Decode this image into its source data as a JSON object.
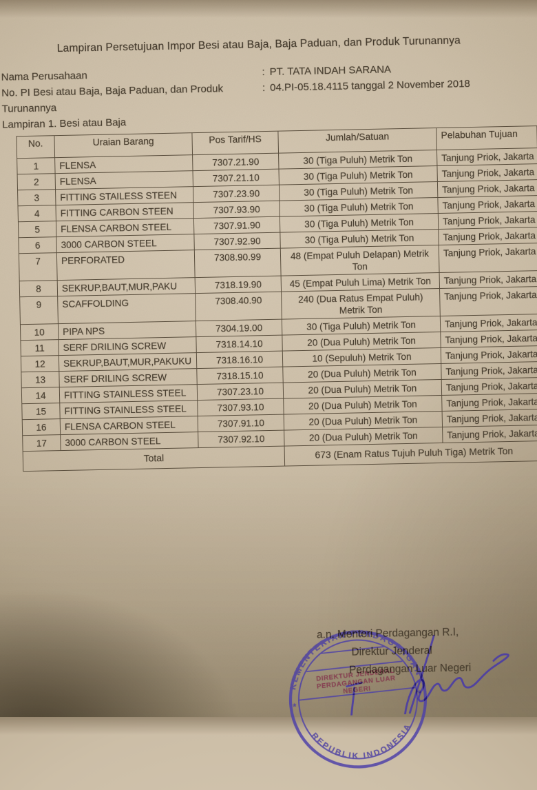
{
  "doc": {
    "title": "Lampiran Persetujuan Impor Besi atau Baja, Baja Paduan, dan Produk Turunannya",
    "colon": ":",
    "company_label": "Nama Perusahaan",
    "company_value": "PT. TATA INDAH SARANA",
    "pi_label": "No. PI Besi atau Baja, Baja Paduan, dan Produk Turunannya",
    "pi_value": "04.PI-05.18.4115 tanggal 2 November 2018",
    "attachment_label": "Lampiran 1. Besi atau Baja"
  },
  "table": {
    "headers": [
      "No.",
      "Uraian Barang",
      "Pos Tarif/HS",
      "Jumlah/Satuan",
      "Pelabuhan Tujuan"
    ],
    "rows": [
      {
        "no": "1",
        "uraian": "FLENSA",
        "pos": "7307.21.90",
        "jumlah": "30 (Tiga Puluh) Metrik Ton",
        "pelabuhan": "Tanjung Priok, Jakarta"
      },
      {
        "no": "2",
        "uraian": "FLENSA",
        "pos": "7307.21.10",
        "jumlah": "30 (Tiga Puluh) Metrik Ton",
        "pelabuhan": "Tanjung Priok, Jakarta"
      },
      {
        "no": "3",
        "uraian": "FITTING STAILESS STEEN",
        "pos": "7307.23.90",
        "jumlah": "30 (Tiga Puluh) Metrik Ton",
        "pelabuhan": "Tanjung Priok, Jakarta"
      },
      {
        "no": "4",
        "uraian": "FITTING CARBON STEEN",
        "pos": "7307.93.90",
        "jumlah": "30 (Tiga Puluh) Metrik Ton",
        "pelabuhan": "Tanjung Priok, Jakarta"
      },
      {
        "no": "5",
        "uraian": "FLENSA CARBON STEEL",
        "pos": "7307.91.90",
        "jumlah": "30 (Tiga Puluh) Metrik Ton",
        "pelabuhan": "Tanjung Priok, Jakarta"
      },
      {
        "no": "6",
        "uraian": "3000 CARBON STEEL",
        "pos": "7307.92.90",
        "jumlah": "30 (Tiga Puluh) Metrik Ton",
        "pelabuhan": "Tanjung Priok, Jakarta"
      },
      {
        "no": "7",
        "uraian": "PERFORATED",
        "pos": "7308.90.99",
        "jumlah": "48 (Empat Puluh Delapan) Metrik Ton",
        "pelabuhan": "Tanjung Priok, Jakarta"
      },
      {
        "no": "8",
        "uraian": "SEKRUP,BAUT,MUR,PAKU",
        "pos": "7318.19.90",
        "jumlah": "45 (Empat Puluh Lima) Metrik Ton",
        "pelabuhan": "Tanjung Priok, Jakarta"
      },
      {
        "no": "9",
        "uraian": "SCAFFOLDING",
        "pos": "7308.40.90",
        "jumlah": "240 (Dua Ratus Empat Puluh) Metrik Ton",
        "pelabuhan": "Tanjung Priok, Jakarta"
      },
      {
        "no": "10",
        "uraian": "PIPA NPS",
        "pos": "7304.19.00",
        "jumlah": "30 (Tiga Puluh) Metrik Ton",
        "pelabuhan": "Tanjung Priok, Jakarta"
      },
      {
        "no": "11",
        "uraian": "SERF DRILING SCREW",
        "pos": "7318.14.10",
        "jumlah": "20 (Dua Puluh) Metrik Ton",
        "pelabuhan": "Tanjung Priok, Jakarta"
      },
      {
        "no": "12",
        "uraian": "SEKRUP,BAUT,MUR,PAKUKU",
        "pos": "7318.16.10",
        "jumlah": "10 (Sepuluh) Metrik Ton",
        "pelabuhan": "Tanjung Priok, Jakarta"
      },
      {
        "no": "13",
        "uraian": "SERF DRILING SCREW",
        "pos": "7318.15.10",
        "jumlah": "20 (Dua Puluh) Metrik Ton",
        "pelabuhan": "Tanjung Priok, Jakarta"
      },
      {
        "no": "14",
        "uraian": "FITTING STAINLESS STEEL",
        "pos": "7307.23.10",
        "jumlah": "20 (Dua Puluh) Metrik Ton",
        "pelabuhan": "Tanjung Priok, Jakarta"
      },
      {
        "no": "15",
        "uraian": "FITTING STAINLESS STEEL",
        "pos": "7307.93.10",
        "jumlah": "20 (Dua Puluh) Metrik Ton",
        "pelabuhan": "Tanjung Priok, Jakarta"
      },
      {
        "no": "16",
        "uraian": "FLENSA CARBON STEEL",
        "pos": "7307.91.10",
        "jumlah": "20 (Dua Puluh) Metrik Ton",
        "pelabuhan": "Tanjung Priok, Jakarta"
      },
      {
        "no": "17",
        "uraian": "3000 CARBON STEEL",
        "pos": "7307.92.10",
        "jumlah": "20 (Dua Puluh) Metrik Ton",
        "pelabuhan": "Tanjung Priok, Jakarta"
      }
    ],
    "total_label": "Total",
    "total_value": "673 (Enam Ratus Tujuh Puluh Tiga) Metrik Ton"
  },
  "signature": {
    "line1": "a.n. Menteri Perdagangan R.I,",
    "line2": "Direktur Jenderal",
    "line3": "Perdagangan Luar Negeri",
    "stamp": {
      "ring_top": "KEMENTERIAN PERDAGANGAN",
      "ring_bottom": "REPUBLIK INDONESIA",
      "star": "*",
      "inner_line1": "DIREKTUR JENDERAL",
      "inner_line2": "PERDAGANGAN LUAR",
      "inner_line3": "NEGERI"
    }
  },
  "colors": {
    "paper": "#ccbea7",
    "ink": "#463c2e",
    "table_border": "#5a4e3d",
    "stamp_ink": "#4f42a8",
    "stamp_inner_ink": "#8a3550",
    "signature_ink": "#4b3ca6"
  }
}
